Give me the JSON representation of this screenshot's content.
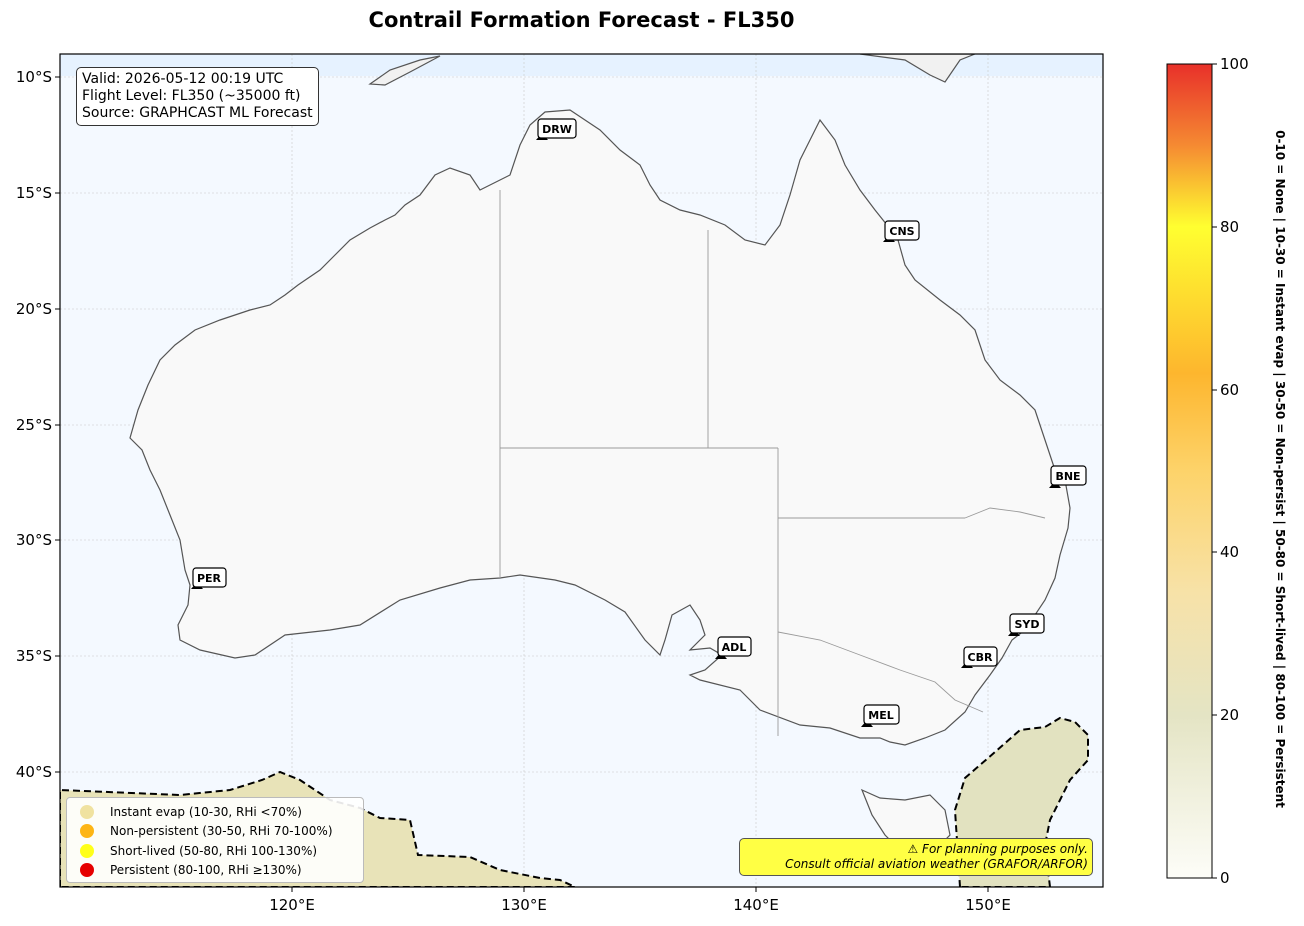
{
  "title": "Contrail Formation Forecast - FL350",
  "info_box": {
    "valid": "Valid: 2026-05-12 00:19 UTC",
    "flight_level": "Flight Level: FL350 (~35000 ft)",
    "source": "Source: GRAPHCAST ML Forecast"
  },
  "axes": {
    "lat_ticks": [
      "10°S",
      "15°S",
      "20°S",
      "25°S",
      "30°S",
      "35°S",
      "40°S"
    ],
    "lon_ticks": [
      "120°E",
      "130°E",
      "140°E",
      "150°E"
    ]
  },
  "cities": [
    {
      "code": "DRW"
    },
    {
      "code": "CNS"
    },
    {
      "code": "BNE"
    },
    {
      "code": "PER"
    },
    {
      "code": "SYD"
    },
    {
      "code": "ADL"
    },
    {
      "code": "CBR"
    },
    {
      "code": "MEL"
    }
  ],
  "legend": {
    "items": [
      {
        "label": "Instant evap (10-30, RHi <70%)",
        "color": "#f0e2a0"
      },
      {
        "label": "Non-persistent (30-50, RHi 70-100%)",
        "color": "#fdb515"
      },
      {
        "label": "Short-lived (50-80, RHi 100-130%)",
        "color": "#ffff1a"
      },
      {
        "label": "Persistent (80-100, RHi ≥130%)",
        "color": "#e60000"
      }
    ]
  },
  "warning": {
    "line1": "⚠ For planning purposes only.",
    "line2": "Consult official aviation weather (GRAFOR/ARFOR)"
  },
  "colorbar": {
    "ticks": [
      "0",
      "20",
      "40",
      "60",
      "80",
      "100"
    ],
    "label": "0-10 = None  |  10-30 = Instant evap  |  30-50 = Non-persist  |  50-80 = Short-lived  |  80-100 = Persistent"
  },
  "colors": {
    "ocean": "#f4f9ff",
    "land": "#f9f9f9",
    "instant_evap_fill": "#e8e3b8",
    "warning_bg": "#ffff44"
  }
}
